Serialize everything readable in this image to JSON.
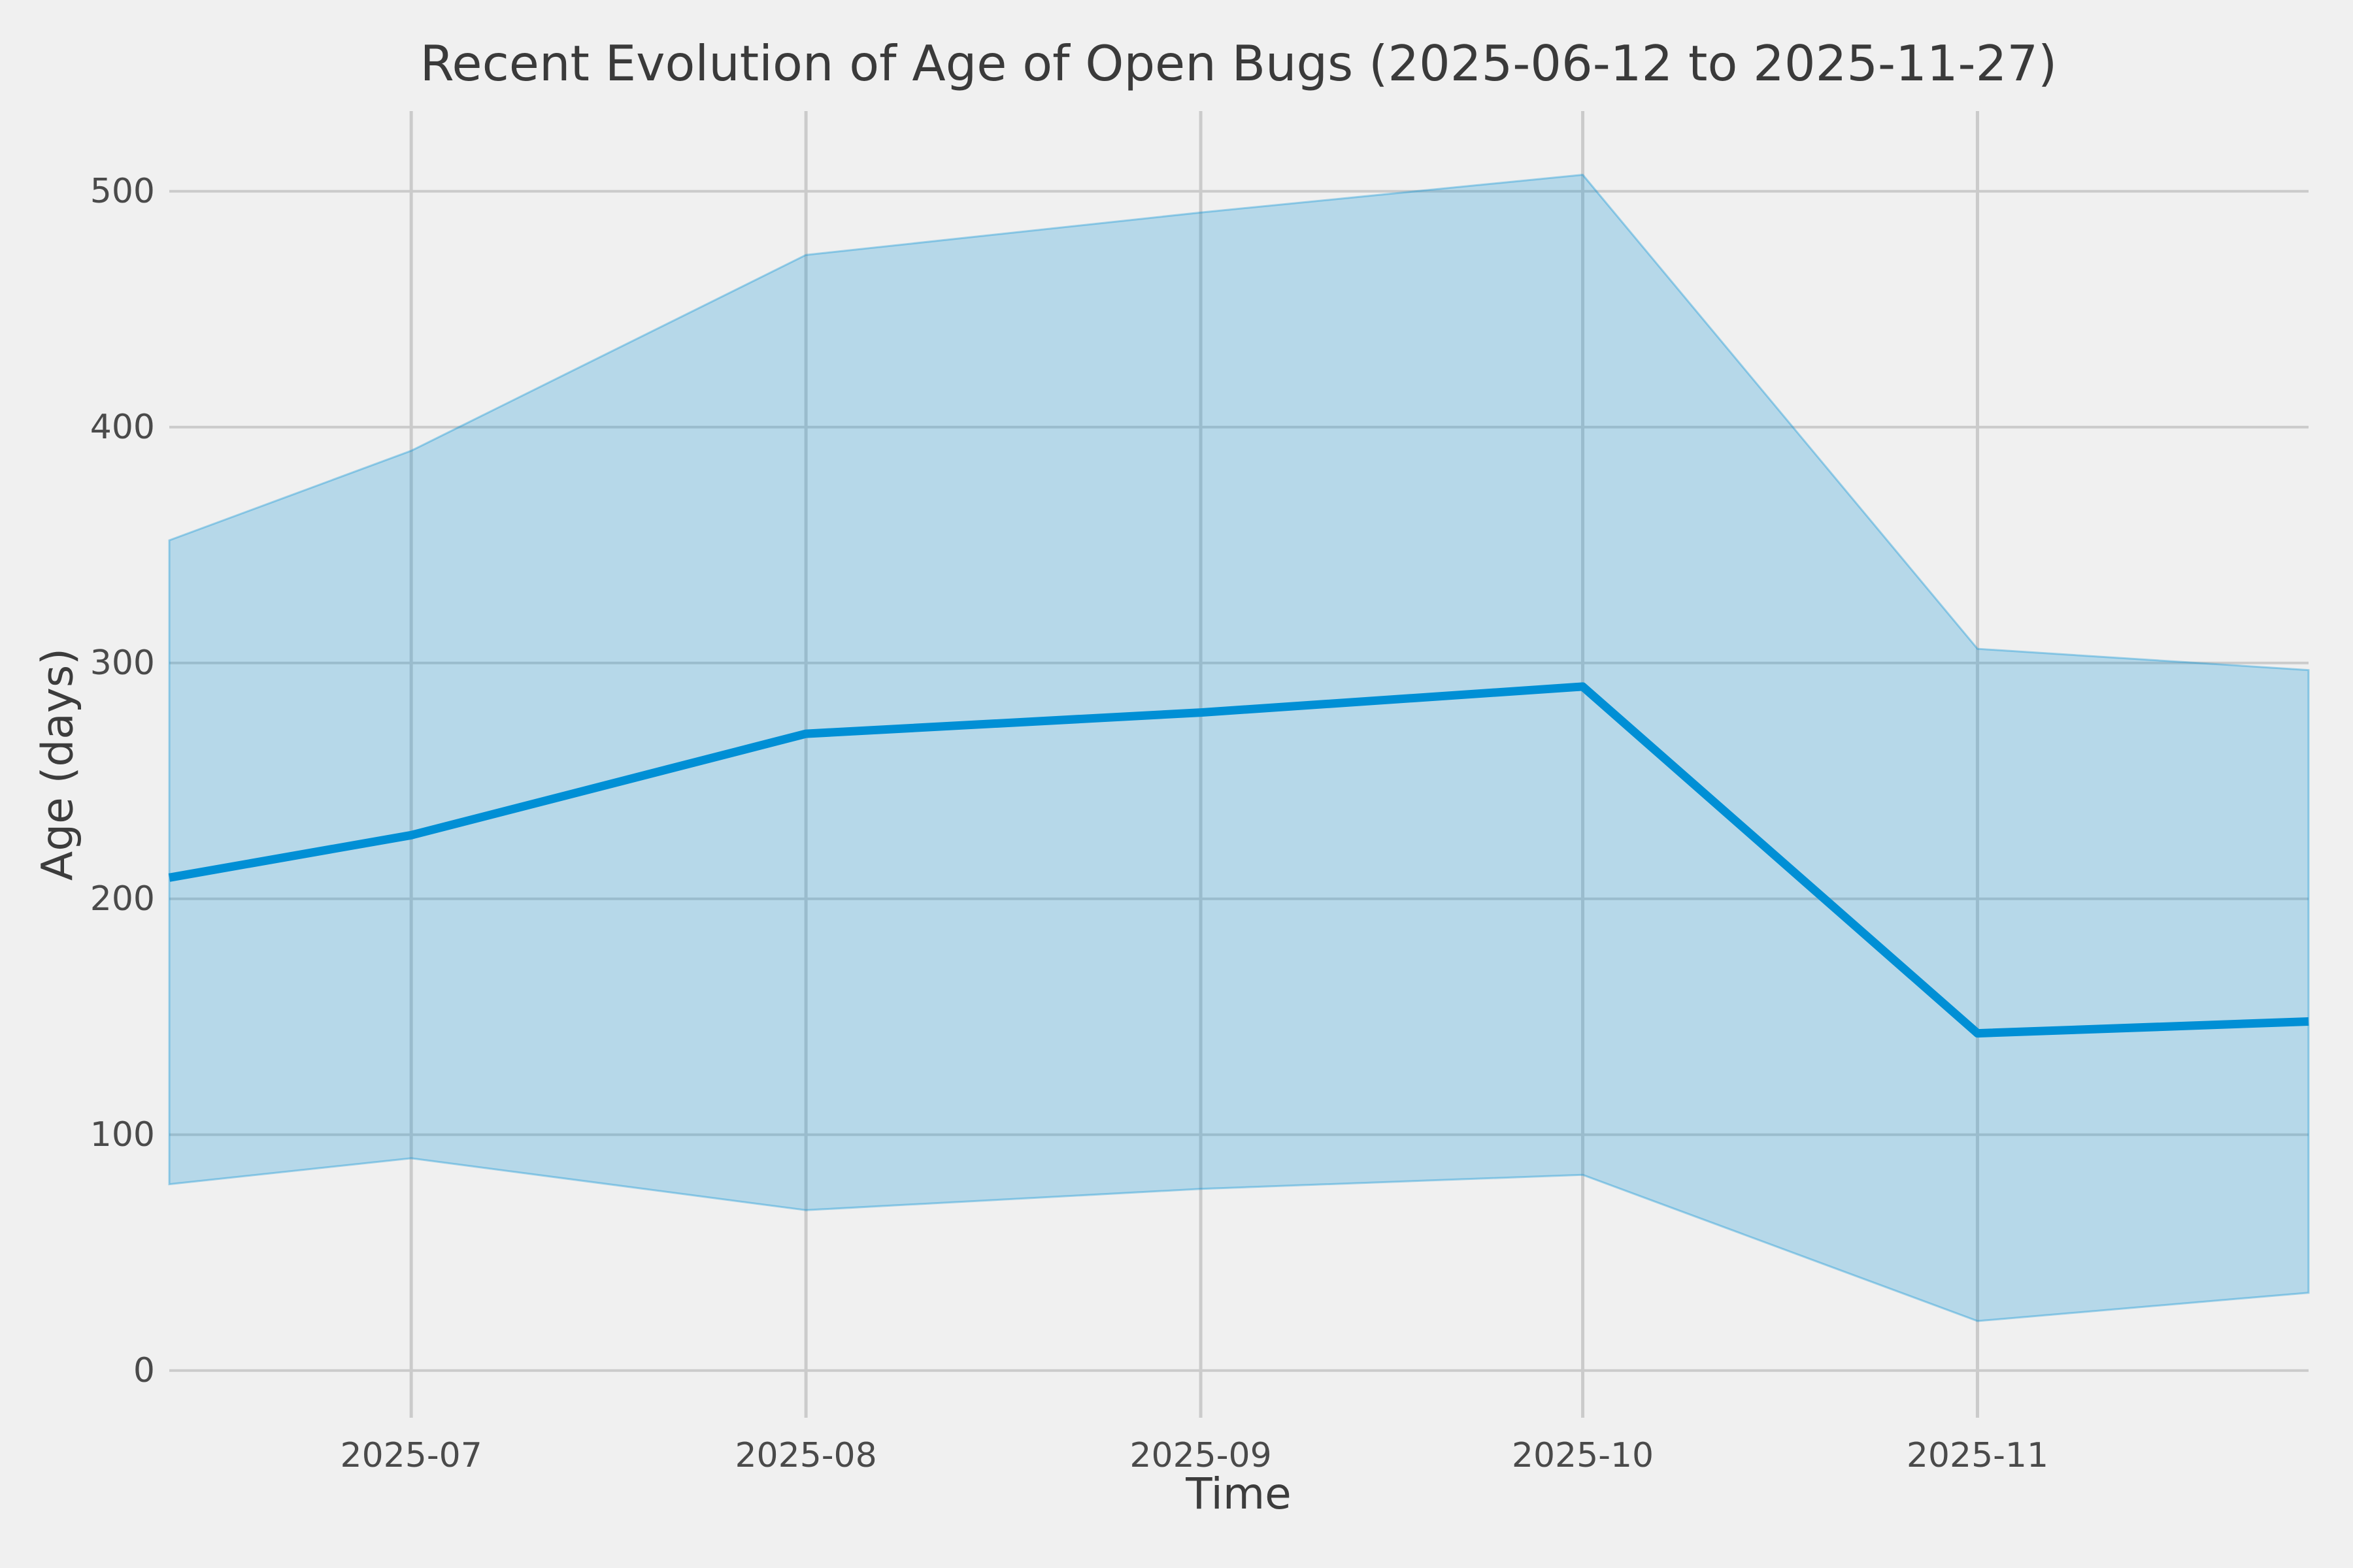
{
  "chart_data": {
    "type": "line",
    "title": "Recent Evolution of Age of Open Bugs (2025-06-12 to 2025-11-27)",
    "xlabel": "Time",
    "ylabel": "Age (days)",
    "x_dates": [
      "2025-06-12",
      "2025-07-01",
      "2025-08-01",
      "2025-09-01",
      "2025-10-01",
      "2025-11-01",
      "2025-11-27"
    ],
    "x_days": [
      0,
      19,
      50,
      81,
      111,
      142,
      168
    ],
    "series": [
      {
        "name": "median_age_days",
        "values": [
          209,
          227,
          270,
          279,
          290,
          143,
          148
        ]
      },
      {
        "name": "band_upper_age_days",
        "values": [
          352,
          390,
          473,
          491,
          507,
          306,
          297
        ]
      },
      {
        "name": "band_lower_age_days",
        "values": [
          79,
          90,
          68,
          77,
          83,
          21,
          33
        ]
      }
    ],
    "x_tick_labels": [
      "2025-07",
      "2025-08",
      "2025-09",
      "2025-10",
      "2025-11"
    ],
    "x_tick_days": [
      19,
      50,
      81,
      111,
      142
    ],
    "y_tick_labels": [
      "0",
      "100",
      "200",
      "300",
      "400",
      "500"
    ],
    "y_ticks": [
      0,
      100,
      200,
      300,
      400,
      500
    ],
    "xlim_days": [
      0,
      168
    ],
    "ylim": [
      -20,
      534
    ],
    "grid": true,
    "legend_position": "none",
    "colors": {
      "line": "#008fd5",
      "band_fill_rgba": "rgba(0,143,213,0.24)",
      "band_edge_rgba": "rgba(0,143,213,0.35)",
      "grid": "#cbcbcb",
      "background": "#f0f0f0",
      "text": "#3c3c3c"
    }
  }
}
